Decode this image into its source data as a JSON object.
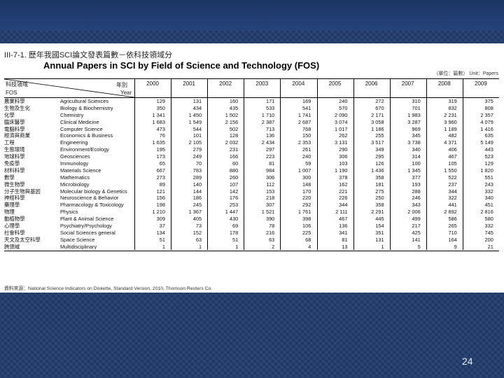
{
  "slide": {
    "page_number": "24"
  },
  "document": {
    "title_zh": "III-7-1. 歷年我國SCI論文發表篇數－依科技領域分",
    "title_en": "Annual Papers in SCI by Field of Science and Technology (FOS)",
    "unit": "（單位：篇數） Unit：Papers",
    "header": {
      "corner_zh": "科技領域",
      "corner_en": "FOS",
      "year_zh": "年別",
      "year_en": "Year"
    },
    "years": [
      "2000",
      "2001",
      "2002",
      "2003",
      "2004",
      "2005",
      "2006",
      "2007",
      "2008",
      "2009"
    ],
    "rows": [
      {
        "zh": "農業科學",
        "en": "Agricultural Sciences",
        "v": [
          "129",
          "131",
          "160",
          "171",
          "169",
          "240",
          "272",
          "310",
          "319",
          "375"
        ]
      },
      {
        "zh": "生物及生化",
        "en": "Biology & Biochemistry",
        "v": [
          "350",
          "434",
          "435",
          "533",
          "541",
          "570",
          "670",
          "701",
          "832",
          "808"
        ]
      },
      {
        "zh": "化學",
        "en": "Chemistry",
        "v": [
          "1 341",
          "1 450",
          "1 502",
          "1 710",
          "1 741",
          "2 090",
          "2 171",
          "1 983",
          "2 231",
          "2 357"
        ]
      },
      {
        "zh": "臨床醫學",
        "en": "Clinical Medicine",
        "v": [
          "1 683",
          "1 549",
          "2 156",
          "2 387",
          "2 687",
          "3 074",
          "3 058",
          "3 287",
          "3 960",
          "4 079"
        ]
      },
      {
        "zh": "電腦科學",
        "en": "Computer Science",
        "v": [
          "473",
          "544",
          "502",
          "713",
          "768",
          "1 017",
          "1 186",
          "969",
          "1 189",
          "1 416"
        ]
      },
      {
        "zh": "經濟與商業",
        "en": "Economics & Business",
        "v": [
          "76",
          "101",
          "128",
          "136",
          "150",
          "262",
          "255",
          "345",
          "482",
          "635"
        ]
      },
      {
        "zh": "工程",
        "en": "Engineering",
        "v": [
          "1 635",
          "2 105",
          "2 032",
          "2 434",
          "2 353",
          "3 131",
          "3 517",
          "3 738",
          "4 371",
          "5 149"
        ]
      },
      {
        "zh": "生態環境",
        "en": "Environment/Ecology",
        "v": [
          "195",
          "279",
          "231",
          "297",
          "261",
          "290",
          "349",
          "340",
          "406",
          "443"
        ]
      },
      {
        "zh": "地球科學",
        "en": "Geosciences",
        "v": [
          "173",
          "249",
          "166",
          "223",
          "240",
          "306",
          "295",
          "314",
          "467",
          "523"
        ]
      },
      {
        "zh": "免疫學",
        "en": "Immunology",
        "v": [
          "65",
          "70",
          "60",
          "81",
          "59",
          "103",
          "126",
          "100",
          "105",
          "129"
        ]
      },
      {
        "zh": "材料科學",
        "en": "Materials Science",
        "v": [
          "667",
          "783",
          "880",
          "984",
          "1 007",
          "1 190",
          "1 436",
          "1 345",
          "1 550",
          "1 820"
        ]
      },
      {
        "zh": "數學",
        "en": "Mathematics",
        "v": [
          "273",
          "289",
          "260",
          "306",
          "300",
          "378",
          "358",
          "377",
          "522",
          "551"
        ]
      },
      {
        "zh": "微生物學",
        "en": "Microbiology",
        "v": [
          "89",
          "140",
          "107",
          "112",
          "148",
          "162",
          "181",
          "193",
          "237",
          "243"
        ]
      },
      {
        "zh": "分子生物與基因",
        "en": "Molecular biology & Genetics",
        "v": [
          "121",
          "144",
          "142",
          "153",
          "170",
          "221",
          "275",
          "288",
          "344",
          "332"
        ]
      },
      {
        "zh": "神經科學",
        "en": "Neuroscience & Behavior",
        "v": [
          "156",
          "186",
          "176",
          "218",
          "220",
          "226",
          "250",
          "246",
          "322",
          "340"
        ]
      },
      {
        "zh": "藥理學",
        "en": "Pharmacology & Toxicology",
        "v": [
          "198",
          "245",
          "253",
          "307",
          "292",
          "344",
          "358",
          "343",
          "441",
          "451"
        ]
      },
      {
        "zh": "物理",
        "en": "Physics",
        "v": [
          "1 210",
          "1 367",
          "1 447",
          "1 521",
          "1 761",
          "2 111",
          "2 291",
          "2 006",
          "2 892",
          "2 816"
        ]
      },
      {
        "zh": "動植物學",
        "en": "Plant & Animal Science",
        "v": [
          "309",
          "405",
          "430",
          "390",
          "398",
          "467",
          "445",
          "499",
          "586",
          "580"
        ]
      },
      {
        "zh": "心理學",
        "en": "Psychiatry/Psychology",
        "v": [
          "37",
          "73",
          "69",
          "78",
          "106",
          "136",
          "154",
          "217",
          "265",
          "332"
        ]
      },
      {
        "zh": "社會科學",
        "en": "Social Sciences general",
        "v": [
          "134",
          "152",
          "178",
          "216",
          "225",
          "341",
          "351",
          "425",
          "710",
          "745"
        ]
      },
      {
        "zh": "天文及太空科學",
        "en": "Space Science",
        "v": [
          "51",
          "63",
          "51",
          "63",
          "68",
          "81",
          "131",
          "141",
          "164",
          "200"
        ]
      },
      {
        "zh": "跨領域",
        "en": "Multidisciplinary",
        "v": [
          "1",
          "1",
          "1",
          "2",
          "4",
          "13",
          "1",
          "5",
          "9",
          "21"
        ]
      }
    ],
    "source": "資料來源：National Science Indicators on Diskette, Standard Version, 2010, Thomson Reuters Co."
  }
}
